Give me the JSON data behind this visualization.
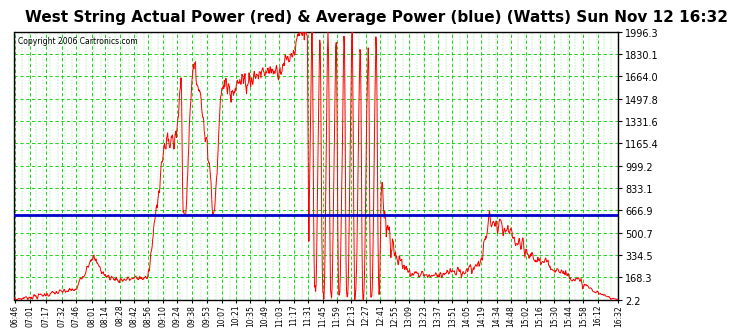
{
  "title": "West String Actual Power (red) & Average Power (blue) (Watts) Sun Nov 12 16:32",
  "copyright": "Copyright 2006 Cartronics.com",
  "y_ticks": [
    2.2,
    168.3,
    334.5,
    500.7,
    666.9,
    833.1,
    999.2,
    1165.4,
    1331.6,
    1497.8,
    1664.0,
    1830.1,
    1996.3
  ],
  "y_min": 2.2,
  "y_max": 1996.3,
  "average_power": 630.0,
  "bg_color": "#ffffff",
  "plot_bg_color": "#ffffff",
  "grid_color": "#00cc00",
  "line_color_actual": "#ff0000",
  "line_color_avg": "#0000cc",
  "x_labels": [
    "06:46",
    "07:01",
    "07:17",
    "07:32",
    "07:46",
    "08:01",
    "08:14",
    "08:28",
    "08:42",
    "08:56",
    "09:10",
    "09:24",
    "09:38",
    "09:53",
    "10:07",
    "10:21",
    "10:35",
    "10:49",
    "11:03",
    "11:17",
    "11:31",
    "11:45",
    "11:59",
    "12:13",
    "12:27",
    "12:41",
    "12:55",
    "13:09",
    "13:23",
    "13:37",
    "13:51",
    "14:05",
    "14:19",
    "14:34",
    "14:48",
    "15:02",
    "15:16",
    "15:30",
    "15:44",
    "15:58",
    "16:12",
    "16:32"
  ],
  "title_fontsize": 11,
  "tick_fontsize": 7,
  "x_tick_fontsize": 5.5
}
